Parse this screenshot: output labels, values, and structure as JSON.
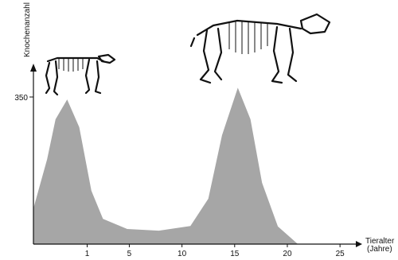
{
  "chart_data": {
    "type": "area",
    "y_label": "Knochenanzahl",
    "x_label": [
      "Tieralter",
      "(Jahre)"
    ],
    "x": [
      -4.1,
      -2.8,
      -2.0,
      -0.9,
      0.25,
      1.4,
      2.5,
      4.8,
      7.8,
      10.8,
      12.5,
      13.8,
      15.3,
      16.5,
      17.6,
      19.1,
      21.0
    ],
    "values": [
      85,
      202,
      297,
      344,
      278,
      127,
      60,
      36,
      32,
      43,
      108,
      259,
      372,
      297,
      146,
      42,
      0
    ],
    "color": "#a6a6a6",
    "xlim": [
      -4.1,
      26.5
    ],
    "ylim": [
      0,
      420
    ],
    "xticks": [
      1,
      5,
      10,
      15,
      20,
      25
    ],
    "yticks": [
      350
    ]
  }
}
